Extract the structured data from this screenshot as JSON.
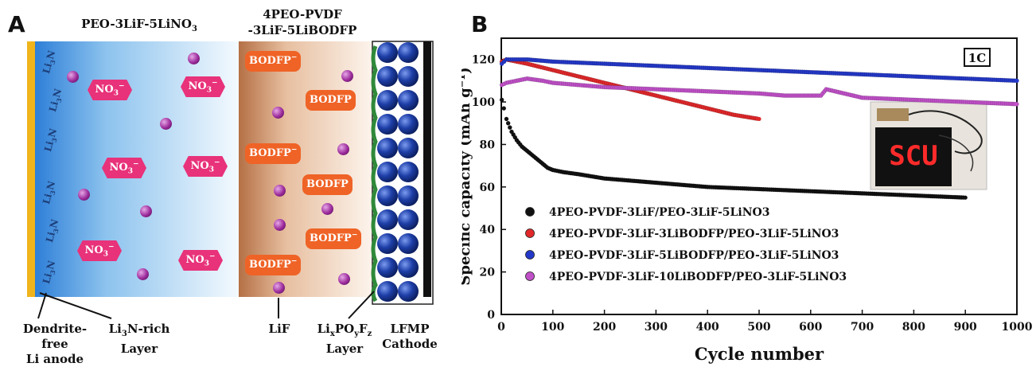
{
  "panel_a": {
    "letter": "A",
    "header_left": "PEO-3LiF-5LiNO3",
    "header_right_line1": "4PEO-PVDF",
    "header_right_line2": "-3LiF-5LiBODFP",
    "nitrate_label": "NO3⁻",
    "bodfp_label": "BODFP⁻",
    "bodfp_label_alt": "BODFP",
    "li3n_label": "Li3N",
    "labels": {
      "dendrite_free_line1": "Dendrite-free",
      "dendrite_free_line2": "Li anode",
      "li3n_rich_line1": "Li3N-rich",
      "li3n_rich_line2": "Layer",
      "lif": "LiF",
      "lixpoyfz_line1": "LixPOyFz",
      "lixpoyfz_line2": "Layer",
      "lfmp_line1": "LFMP",
      "lfmp_line2": "Cathode"
    },
    "colors": {
      "nitrate": "#e8327a",
      "bodfp": "#ef6326",
      "sphere": "#9b2a9b",
      "cathode_ball": "#1e3fa8",
      "li_anode": "#f0b41c"
    }
  },
  "panel_b": {
    "letter": "B",
    "rate_label": "1C",
    "inset_display_text": "SCU"
  },
  "chart_data": {
    "type": "scatter",
    "xlabel": "Cycle number",
    "ylabel": "Specific capacity (mAh g⁻¹)",
    "xlim": [
      0,
      1000
    ],
    "ylim": [
      0,
      130
    ],
    "xticks": [
      0,
      100,
      200,
      300,
      400,
      500,
      600,
      700,
      800,
      900,
      1000
    ],
    "yticks": [
      0,
      20,
      40,
      60,
      80,
      100,
      120
    ],
    "legend_position": "bottom-left",
    "series": [
      {
        "name": "4PEO-PVDF-3LiF/PEO-3LiF-5LiNO3",
        "color": "#111111",
        "x": [
          1,
          5,
          10,
          20,
          30,
          40,
          50,
          60,
          70,
          80,
          90,
          100,
          120,
          150,
          200,
          250,
          300,
          350,
          400,
          500,
          600,
          700,
          800,
          900
        ],
        "y": [
          101,
          97,
          92,
          86,
          82,
          79,
          77,
          75,
          73,
          71,
          69,
          68,
          67,
          66,
          64,
          63,
          62,
          61,
          60,
          59,
          58,
          57,
          56,
          55
        ]
      },
      {
        "name": "4PEO-PVDF-3LiF-3LiBODFP/PEO-3LiF-5LiNO3",
        "color": "#e0282a",
        "x": [
          1,
          10,
          30,
          50,
          100,
          150,
          200,
          250,
          300,
          350,
          400,
          450,
          500
        ],
        "y": [
          119,
          120,
          119,
          118,
          115,
          112,
          109,
          106,
          103,
          100,
          97,
          94,
          92
        ]
      },
      {
        "name": "4PEO-PVDF-3LiF-5LiBODFP/PEO-3LiF-5LiNO3",
        "color": "#2438c8",
        "x": [
          1,
          10,
          50,
          100,
          200,
          300,
          400,
          500,
          600,
          700,
          800,
          900,
          1000
        ],
        "y": [
          118,
          120,
          120,
          119,
          118,
          117,
          116,
          115,
          114,
          113,
          112,
          111,
          110
        ]
      },
      {
        "name": "4PEO-PVDF-3LiF-10LiBODFP/PEO-3LiF-5LiNO3",
        "color": "#c050c8",
        "x": [
          1,
          10,
          30,
          50,
          80,
          100,
          200,
          300,
          400,
          500,
          550,
          620,
          630,
          700,
          800,
          900,
          1000
        ],
        "y": [
          108,
          109,
          110,
          111,
          110,
          109,
          107,
          106,
          105,
          104,
          103,
          103,
          106,
          102,
          101,
          100,
          99
        ]
      }
    ]
  }
}
